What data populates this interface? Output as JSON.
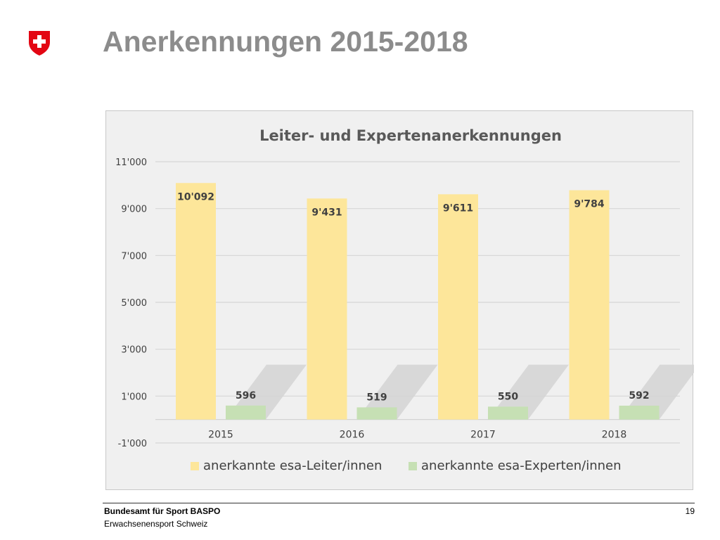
{
  "slide": {
    "title": "Anerkennungen 2015-2018",
    "footer_org": "Bundesamt für Sport BASPO",
    "footer_unit": "Erwachsenensport Schweiz",
    "page_number": "19"
  },
  "colors": {
    "title": "#8c8c8c",
    "logo_red": "#e30613",
    "series_leiter": "#fde69a",
    "series_experten": "#c6e0b4",
    "grid": "#d6d6d6",
    "chart_bg": "#f0f0f0"
  },
  "icons": {
    "logo": "swiss-cross-shield-icon"
  },
  "chart_data": {
    "type": "bar",
    "title": "Leiter- und Expertenanerkennungen",
    "xlabel": "",
    "ylabel": "",
    "categories": [
      "2015",
      "2016",
      "2017",
      "2018"
    ],
    "series": [
      {
        "name": "anerkannte esa-Leiter/innen",
        "values": [
          10092,
          9431,
          9611,
          9784
        ],
        "labels": [
          "10'092",
          "9'431",
          "9'611",
          "9'784"
        ]
      },
      {
        "name": "anerkannte esa-Experten/innen",
        "values": [
          596,
          519,
          550,
          592
        ],
        "labels": [
          "596",
          "519",
          "550",
          "592"
        ]
      }
    ],
    "ylim": [
      -1000,
      11000
    ],
    "yticks": [
      -1000,
      1000,
      3000,
      5000,
      7000,
      9000,
      11000
    ],
    "ytick_labels": [
      "-1'000",
      "1'000",
      "3'000",
      "5'000",
      "7'000",
      "9'000",
      "11'000"
    ],
    "grid": true,
    "legend_position": "bottom"
  }
}
